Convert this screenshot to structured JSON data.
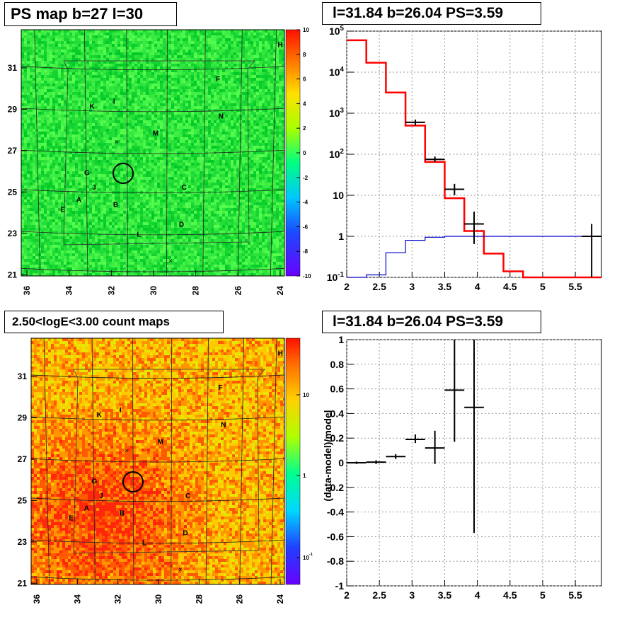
{
  "titles": {
    "map_top": "PS map b=27 l=30",
    "spec_top": "l=31.84 b=26.04 PS=3.59",
    "map_bottom": "2.50<logE<3.00 count maps",
    "spec_bottom": "l=31.84 b=26.04 PS=3.59"
  },
  "map": {
    "x_ticks": [
      "36",
      "34",
      "32",
      "30",
      "28",
      "26",
      "24"
    ],
    "y_ticks": [
      "31",
      "29",
      "27",
      "25",
      "23",
      "21"
    ],
    "labels": [
      "H",
      "F",
      "I",
      "K",
      "N",
      "M",
      "G",
      "J",
      "C",
      "A",
      "E",
      "B",
      "D",
      "L"
    ],
    "top_colorbar_ticks": [
      "10",
      "8",
      "6",
      "4",
      "2",
      "0",
      "-2",
      "-4",
      "-6",
      "-8",
      "-10"
    ],
    "bottom_colorbar_ticks": [
      "10",
      "1",
      "10^-1"
    ]
  },
  "chart_data": [
    {
      "type": "line",
      "panel": "spectrum",
      "title": "l=31.84 b=26.04 PS=3.59",
      "xlabel": "",
      "ylabel": "",
      "xlim": [
        2,
        5.9
      ],
      "ylim": [
        0.1,
        100000
      ],
      "yscale": "log",
      "grid": true,
      "x_tick_labels": [
        "2",
        "2.5",
        "3",
        "3.5",
        "4",
        "4.5",
        "5",
        "5.5"
      ],
      "y_tick_labels": [
        "10^-1",
        "1",
        "10",
        "10^2",
        "10^3",
        "10^4",
        "10^5"
      ],
      "bin_edges": [
        2,
        2.3,
        2.6,
        2.9,
        3.2,
        3.5,
        3.8,
        4.1,
        4.4,
        4.7,
        5.0,
        5.3,
        5.6,
        5.9
      ],
      "series": [
        {
          "color": "#ff0000",
          "style": "step",
          "values": [
            60000,
            17000,
            3200,
            500,
            65,
            8.5,
            1.35,
            0.38,
            0.14,
            0.1,
            0.1,
            0.1,
            0.1
          ]
        },
        {
          "color": "#0000cc",
          "style": "step",
          "values": [
            0.1,
            0.115,
            0.4,
            0.8,
            0.95,
            1.0,
            1.0,
            1.0,
            1.0,
            1.0,
            1.0,
            1.0,
            1.0
          ]
        },
        {
          "color": "#000000",
          "style": "errorbar",
          "points": [
            {
              "x": 3.05,
              "y": 600,
              "xerr": 0.15,
              "ylo": 500,
              "yhi": 700
            },
            {
              "x": 3.35,
              "y": 75,
              "xerr": 0.15,
              "ylo": 65,
              "yhi": 88
            },
            {
              "x": 3.65,
              "y": 14,
              "xerr": 0.15,
              "ylo": 10,
              "yhi": 19
            },
            {
              "x": 3.95,
              "y": 2.0,
              "xerr": 0.15,
              "ylo": 0.65,
              "yhi": 4.0
            },
            {
              "x": 5.75,
              "y": 1.0,
              "xerr": 0.15,
              "ylo": 0.1,
              "yhi": 2.0
            }
          ]
        }
      ]
    },
    {
      "type": "scatter",
      "panel": "residual",
      "title": "l=31.84 b=26.04 PS=3.59",
      "xlabel": "",
      "ylabel": "(data-model)/model",
      "xlim": [
        2,
        5.9
      ],
      "ylim": [
        -1,
        1
      ],
      "grid": true,
      "x_tick_labels": [
        "2",
        "2.5",
        "3",
        "3.5",
        "4",
        "4.5",
        "5",
        "5.5"
      ],
      "y_tick_labels": [
        "-1",
        "-0.8",
        "-0.6",
        "-0.4",
        "-0.2",
        "0",
        "0.2",
        "0.4",
        "0.6",
        "0.8",
        "1"
      ],
      "series": [
        {
          "color": "#000000",
          "points": [
            {
              "x": 2.15,
              "y": 0.0,
              "xerr": 0.15,
              "ylo": -0.01,
              "yhi": 0.01
            },
            {
              "x": 2.45,
              "y": 0.005,
              "xerr": 0.15,
              "ylo": -0.01,
              "yhi": 0.02
            },
            {
              "x": 2.75,
              "y": 0.05,
              "xerr": 0.15,
              "ylo": 0.03,
              "yhi": 0.07
            },
            {
              "x": 3.05,
              "y": 0.19,
              "xerr": 0.15,
              "ylo": 0.16,
              "yhi": 0.23
            },
            {
              "x": 3.35,
              "y": 0.12,
              "xerr": 0.15,
              "ylo": -0.01,
              "yhi": 0.26
            },
            {
              "x": 3.65,
              "y": 0.59,
              "xerr": 0.15,
              "ylo": 0.17,
              "yhi": 1.0
            },
            {
              "x": 3.95,
              "y": 0.45,
              "xerr": 0.15,
              "ylo": -0.57,
              "yhi": 1.0
            }
          ]
        }
      ]
    }
  ]
}
